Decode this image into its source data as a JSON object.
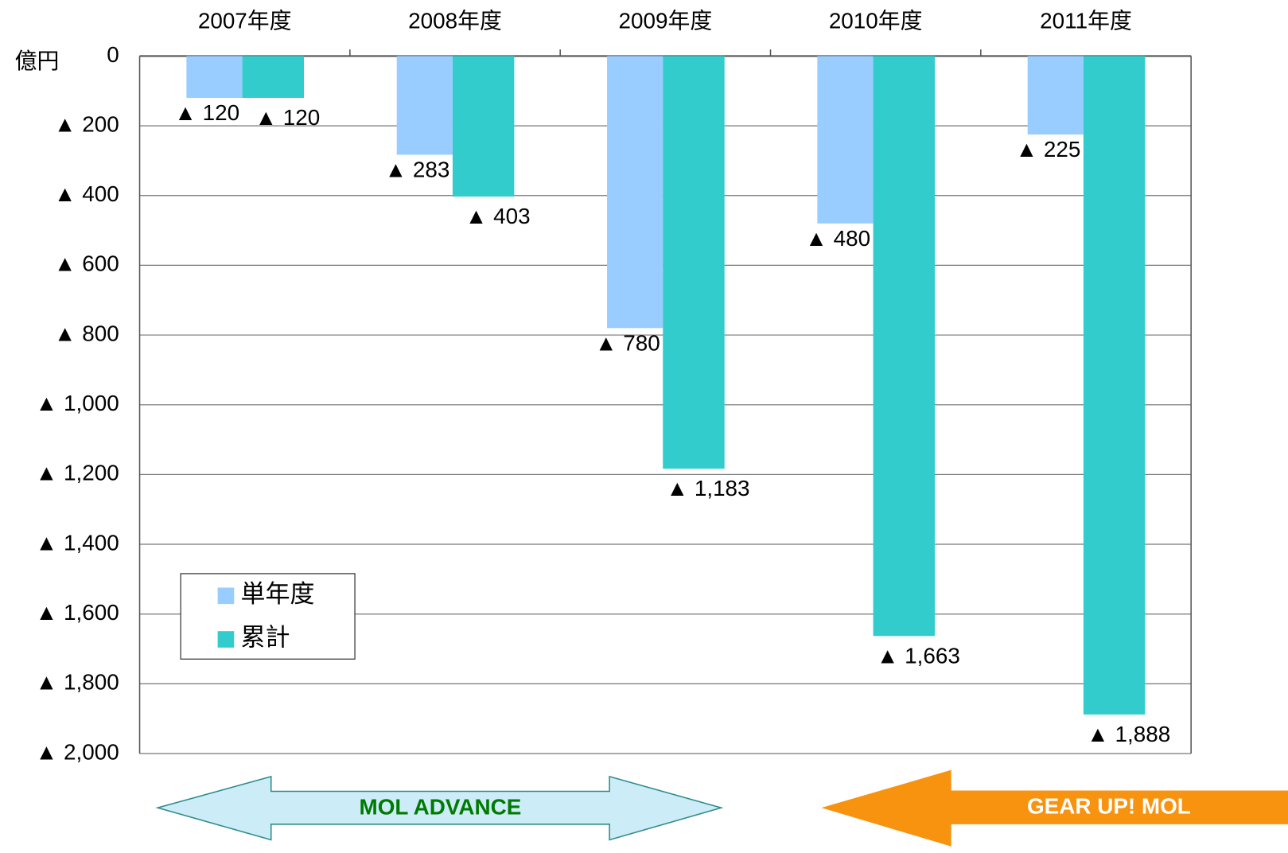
{
  "chart_data": {
    "type": "bar",
    "y_label": "億円",
    "categories": [
      "2007年度",
      "2008年度",
      "2009年度",
      "2010年度",
      "2011年度"
    ],
    "series": [
      {
        "name": "単年度",
        "color": "#99ccff",
        "values": [
          -120,
          -283,
          -780,
          -480,
          -225
        ],
        "value_labels": [
          "▲ 120",
          "▲ 283",
          "▲ 780",
          "▲ 480",
          "▲ 225"
        ]
      },
      {
        "name": "累計",
        "color": "#33cccc",
        "values": [
          -120,
          -403,
          -1183,
          -1663,
          -1888
        ],
        "value_labels": [
          "▲ 120",
          "▲ 403",
          "▲ 1,183",
          "▲ 1,663",
          "▲ 1,888"
        ]
      }
    ],
    "ylim": [
      0,
      -2000
    ],
    "yticks": [
      0,
      {
        "value": -200,
        "label": "▲ 200"
      },
      {
        "value": -400,
        "label": "▲ 400"
      },
      {
        "value": -600,
        "label": "▲ 600"
      },
      {
        "value": -800,
        "label": "▲ 800"
      },
      {
        "value": -1000,
        "label": "▲ 1,000"
      },
      {
        "value": -1200,
        "label": "▲ 1,200"
      },
      {
        "value": -1400,
        "label": "▲ 1,400"
      },
      {
        "value": -1600,
        "label": "▲ 1,600"
      },
      {
        "value": -1800,
        "label": "▲ 1,800"
      },
      {
        "value": -2000,
        "label": "▲ 2,000"
      }
    ],
    "grid": true,
    "annotations": [
      "MOL ADVANCE",
      "GEAR UP! MOL"
    ]
  }
}
